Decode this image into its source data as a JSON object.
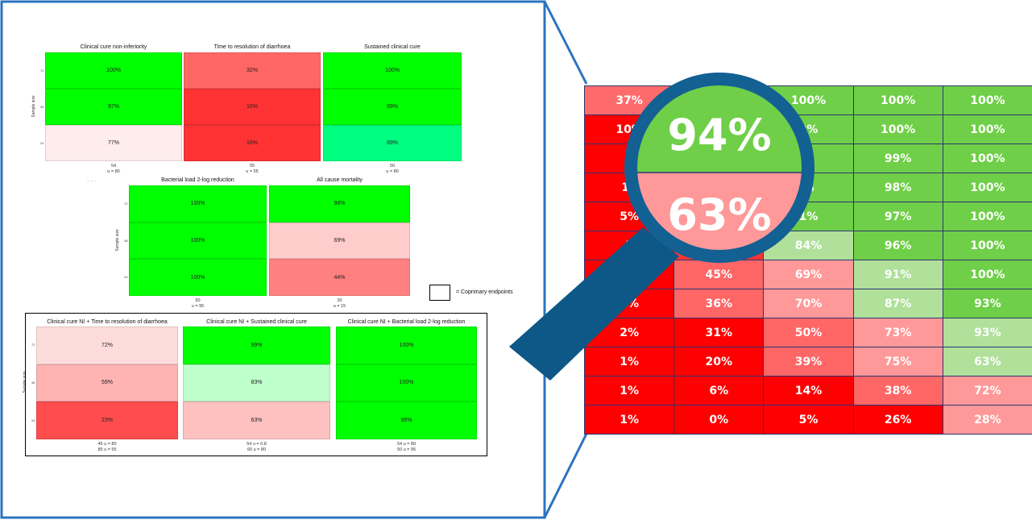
{
  "colors": {
    "frame": "#2b74c0",
    "handle": "#0d5886",
    "lens_ring": "#136093",
    "green_full": "#00ff00",
    "zoom_green": "#6fcf48"
  },
  "left": {
    "row1": [
      {
        "title": "Clinical cure non-inferiority",
        "yticks": [
          "72",
          "48",
          "24"
        ],
        "ylabel": "Sample size",
        "cells": [
          "100%",
          "97%",
          "77%"
        ],
        "colors": [
          "#00ff00",
          "#00ff00",
          "#ffecec"
        ],
        "foot": [
          "54",
          "u = 80"
        ]
      },
      {
        "title": "Time to resolution of diarrhoea",
        "cells": [
          "32%",
          "16%",
          "16%"
        ],
        "colors": [
          "#ff6666",
          "#ff3333",
          "#ff3333"
        ],
        "foot": [
          "55",
          "u = 55"
        ]
      },
      {
        "title": "Sustained clinical cure",
        "cells": [
          "100%",
          "99%",
          "89%"
        ],
        "colors": [
          "#00ff00",
          "#00ff00",
          "#00ff80"
        ],
        "foot": [
          "50",
          "u = 80"
        ]
      }
    ],
    "dots": ". . .",
    "row2": [
      {
        "title": "Bacterial load 2-log reduction",
        "yticks": [
          "72",
          "48",
          "24"
        ],
        "ylabel": "Sample size",
        "cells": [
          "100%",
          "100%",
          "100%"
        ],
        "colors": [
          "#00ff00",
          "#00ff00",
          "#00ff00"
        ],
        "foot": [
          "50",
          "u = 95"
        ]
      },
      {
        "title": "All cause mortality",
        "cells": [
          "98%",
          "69%",
          "44%"
        ],
        "colors": [
          "#00ff00",
          "#ffcccc",
          "#ff8080"
        ],
        "foot": [
          "30",
          "u = 15"
        ]
      }
    ],
    "legend": "= Coprimary endpoints",
    "row3": [
      {
        "title": "Clinical cure NI + Time to resolution of diarrhoea",
        "yticks": [
          "72",
          "48",
          "24"
        ],
        "ylabel": "Sample size",
        "cells": [
          "72%",
          "59%",
          "23%"
        ],
        "colors": [
          "#ffdcdc",
          "#ffb3b3",
          "#ff4d4d"
        ],
        "foot": [
          "45 u = 80",
          "85 u = 55"
        ]
      },
      {
        "title": "Clinical cure NI + Sustained clinical cure",
        "cells": [
          "99%",
          "83%",
          "63%"
        ],
        "colors": [
          "#00ff00",
          "#bfffcc",
          "#ffc0c0"
        ],
        "foot": [
          "54 u = 0.8",
          "60 u = 80"
        ]
      },
      {
        "title": "Clinical cure NI + Bacterial load 2-log reduction",
        "cells": [
          "100%",
          "100%",
          "96%"
        ],
        "colors": [
          "#00ff00",
          "#00ff00",
          "#00ff00"
        ],
        "foot": [
          "54 u = 80",
          "50 u = 95"
        ]
      }
    ]
  },
  "zoom": {
    "rows": [
      [
        "37%",
        "",
        "100%",
        "100%",
        "100%"
      ],
      [
        "10%",
        "",
        "0%",
        "100%",
        "100%"
      ],
      [
        "6",
        "",
        "%",
        "99%",
        "100%"
      ],
      [
        "10",
        "",
        "%",
        "98%",
        "100%"
      ],
      [
        "5%",
        "",
        "1%",
        "97%",
        "100%"
      ],
      [
        "5",
        "",
        "84%",
        "96%",
        "100%"
      ],
      [
        "",
        "45%",
        "69%",
        "91%",
        "100%"
      ],
      [
        "2%",
        "36%",
        "70%",
        "87%",
        "93%"
      ],
      [
        "2%",
        "31%",
        "50%",
        "73%",
        "93%"
      ],
      [
        "1%",
        "20%",
        "39%",
        "75%",
        "63%"
      ],
      [
        "1%",
        "6%",
        "14%",
        "38%",
        "72%"
      ],
      [
        "1%",
        "0%",
        "5%",
        "26%",
        "28%"
      ]
    ],
    "colors": [
      [
        "#ff6b6b",
        "#d8f0c8",
        "#6fcf48",
        "#6fcf48",
        "#6fcf48"
      ],
      [
        "#ff0000",
        "#ff3333",
        "#6fcf48",
        "#6fcf48",
        "#6fcf48"
      ],
      [
        "#ff0000",
        "#ff3333",
        "#6fcf48",
        "#6fcf48",
        "#6fcf48"
      ],
      [
        "#ff0000",
        "#ff3333",
        "#6fcf48",
        "#6fcf48",
        "#6fcf48"
      ],
      [
        "#ff0000",
        "#ff3333",
        "#6fcf48",
        "#6fcf48",
        "#6fcf48"
      ],
      [
        "#ff0000",
        "#ff3333",
        "#b0e09a",
        "#6fcf48",
        "#6fcf48"
      ],
      [
        "#ff0000",
        "#ff6666",
        "#ff9999",
        "#b0e09a",
        "#6fcf48"
      ],
      [
        "#ff0000",
        "#ff6666",
        "#ff9999",
        "#b0e09a",
        "#6fcf48"
      ],
      [
        "#ff0000",
        "#ff0000",
        "#ff6666",
        "#ff9999",
        "#b0e09a"
      ],
      [
        "#ff0000",
        "#ff0000",
        "#ff6666",
        "#ff9999",
        "#b0e09a"
      ],
      [
        "#ff0000",
        "#ff0000",
        "#ff0000",
        "#ff6666",
        "#ff9999"
      ],
      [
        "#ff0000",
        "#ff0000",
        "#ff0000",
        "#ff0000",
        "#ff9999"
      ]
    ]
  },
  "magnifier": {
    "top_value": "94%",
    "bottom_value": "63%",
    "top_color": "#6fcf48",
    "bottom_color": "#ff9999"
  }
}
